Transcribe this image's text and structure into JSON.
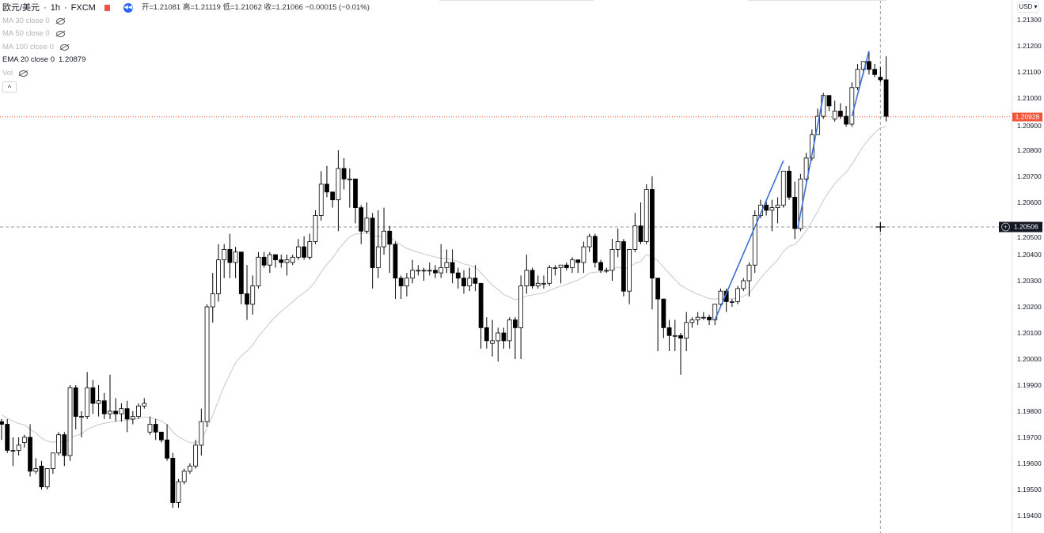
{
  "header": {
    "symbol": "欧元/美元",
    "interval": "1h",
    "exchange": "FXCM",
    "separator": "·",
    "ohlc": "开=1.21081 高=1.21119 低=1.21062 收=1.21066 −0.00015 (−0.01%)",
    "rewind_icon": "rewind-icon",
    "flag_icon": "flag-icon",
    "flag_color": "#f0524a"
  },
  "indicators": [
    {
      "label": "MA 30 close 0",
      "hidden": true
    },
    {
      "label": "MA 50 close 0",
      "hidden": true
    },
    {
      "label": "MA 100 close 0",
      "hidden": true
    },
    {
      "label": "EMA 20 close 0",
      "value": "1.20879",
      "hidden": false
    },
    {
      "label": "Vol",
      "hidden": true
    }
  ],
  "collapse_label": "^",
  "currency_button": "USD ▾",
  "last_price_label": "1.20928",
  "crosshair_price_label": "1.20506",
  "colors": {
    "up": "#ffffff",
    "down": "#000000",
    "ema": "#c8c8c8",
    "last_price": "#f0553a",
    "drawing": "#3d6fd6",
    "crosshair": "#9598a1"
  },
  "chart_data": {
    "type": "candlestick",
    "ylim": [
      1.1935,
      1.2137
    ],
    "y_ticks": [
      "1.21300",
      "1.21200",
      "1.21100",
      "1.21000",
      "1.20900",
      "1.20800",
      "1.20700",
      "1.20600",
      "1.20500",
      "1.20400",
      "1.20300",
      "1.20200",
      "1.20100",
      "1.20000",
      "1.19900",
      "1.19800",
      "1.19700",
      "1.19600",
      "1.19500",
      "1.19400"
    ],
    "grid": false,
    "last_price": 1.20928,
    "crosshair": {
      "price": 1.20506,
      "candle_index": 154
    },
    "ema_period": 20,
    "drawings": [
      {
        "from": [
          125,
          1.2015
        ],
        "to": [
          137,
          1.2076
        ]
      },
      {
        "from": [
          139.5,
          1.205
        ],
        "to": [
          144,
          1.2101
        ]
      },
      {
        "from": [
          149,
          1.2093
        ],
        "to": [
          152,
          1.2118
        ]
      }
    ],
    "ohlc": [
      [
        1.1976,
        1.1977,
        1.1969,
        1.1975
      ],
      [
        1.1975,
        1.1977,
        1.1964,
        1.1965
      ],
      [
        1.1965,
        1.197,
        1.1959,
        1.1965
      ],
      [
        1.1965,
        1.197,
        1.1963,
        1.1967
      ],
      [
        1.1968,
        1.1971,
        1.1966,
        1.197
      ],
      [
        1.197,
        1.1975,
        1.1955,
        1.1957
      ],
      [
        1.1957,
        1.1962,
        1.1956,
        1.1958
      ],
      [
        1.1959,
        1.1961,
        1.195,
        1.1951
      ],
      [
        1.1951,
        1.1958,
        1.195,
        1.1958
      ],
      [
        1.1958,
        1.1964,
        1.1956,
        1.1964
      ],
      [
        1.1964,
        1.1972,
        1.1963,
        1.1971
      ],
      [
        1.1971,
        1.1972,
        1.1959,
        1.1963
      ],
      [
        1.1963,
        1.199,
        1.1961,
        1.1989
      ],
      [
        1.1989,
        1.199,
        1.1973,
        1.1978
      ],
      [
        1.1978,
        1.198,
        1.197,
        1.1978
      ],
      [
        1.1978,
        1.1995,
        1.1977,
        1.1989
      ],
      [
        1.1989,
        1.1992,
        1.1979,
        1.1983
      ],
      [
        1.1983,
        1.199,
        1.1978,
        1.1984
      ],
      [
        1.1984,
        1.1987,
        1.1977,
        1.1979
      ],
      [
        1.1979,
        1.1994,
        1.1977,
        1.198
      ],
      [
        1.198,
        1.1985,
        1.1976,
        1.1979
      ],
      [
        1.1979,
        1.1983,
        1.1976,
        1.1981
      ],
      [
        1.1981,
        1.1984,
        1.1972,
        1.1977
      ],
      [
        1.1977,
        1.198,
        1.1975,
        1.1978
      ],
      [
        1.1978,
        1.1983,
        1.1977,
        1.1982
      ],
      [
        1.1982,
        1.1985,
        1.1981,
        1.1983
      ],
      [
        1.1972,
        1.1978,
        1.1971,
        1.1975
      ],
      [
        1.1975,
        1.1977,
        1.1969,
        1.1972
      ],
      [
        1.1972,
        1.1972,
        1.1968,
        1.1969
      ],
      [
        1.1969,
        1.1975,
        1.1961,
        1.1962
      ],
      [
        1.1962,
        1.1964,
        1.1943,
        1.1945
      ],
      [
        1.1945,
        1.1954,
        1.1943,
        1.1953
      ],
      [
        1.1953,
        1.1958,
        1.1952,
        1.1957
      ],
      [
        1.1957,
        1.196,
        1.1956,
        1.1959
      ],
      [
        1.1959,
        1.1969,
        1.1958,
        1.1967
      ],
      [
        1.1967,
        1.1981,
        1.1963,
        1.1976
      ],
      [
        1.1976,
        1.2021,
        1.1974,
        1.202
      ],
      [
        1.202,
        1.2033,
        1.2014,
        1.2025
      ],
      [
        1.2025,
        1.2044,
        1.2022,
        1.2038
      ],
      [
        1.2038,
        1.2044,
        1.2031,
        1.2042
      ],
      [
        1.2042,
        1.2048,
        1.2031,
        1.2037
      ],
      [
        1.2037,
        1.2043,
        1.2031,
        1.2041
      ],
      [
        1.2041,
        1.2041,
        1.2021,
        1.2025
      ],
      [
        1.2025,
        1.2036,
        1.2015,
        1.2021
      ],
      [
        1.2021,
        1.2032,
        1.2017,
        1.2028
      ],
      [
        1.2028,
        1.2041,
        1.2027,
        1.2039
      ],
      [
        1.2039,
        1.2041,
        1.2035,
        1.2036
      ],
      [
        1.2036,
        1.2041,
        1.2033,
        1.204
      ],
      [
        1.204,
        1.204,
        1.2035,
        1.2038
      ],
      [
        1.2038,
        1.204,
        1.2035,
        1.2037
      ],
      [
        1.2037,
        1.204,
        1.2032,
        1.2038
      ],
      [
        1.2037,
        1.204,
        1.2036,
        1.2039
      ],
      [
        1.2039,
        1.2046,
        1.2038,
        1.2043
      ],
      [
        1.2043,
        1.2047,
        1.2038,
        1.2039
      ],
      [
        1.2039,
        1.2048,
        1.2038,
        1.2045
      ],
      [
        1.2045,
        1.2057,
        1.2044,
        1.2055
      ],
      [
        1.2055,
        1.2072,
        1.2053,
        1.2067
      ],
      [
        1.2067,
        1.2074,
        1.2062,
        1.2064
      ],
      [
        1.2064,
        1.2064,
        1.2058,
        1.2061
      ],
      [
        1.2061,
        1.208,
        1.2049,
        1.2073
      ],
      [
        1.2073,
        1.2077,
        1.2065,
        1.2069
      ],
      [
        1.2069,
        1.2073,
        1.2058,
        1.2069
      ],
      [
        1.2069,
        1.2069,
        1.2052,
        1.2058
      ],
      [
        1.2058,
        1.2059,
        1.2044,
        1.2049
      ],
      [
        1.2049,
        1.206,
        1.2048,
        1.2054
      ],
      [
        1.2054,
        1.2056,
        1.2027,
        1.2035
      ],
      [
        1.2035,
        1.2057,
        1.2031,
        1.2043
      ],
      [
        1.2043,
        1.2058,
        1.204,
        1.2049
      ],
      [
        1.2049,
        1.2051,
        1.2033,
        1.2044
      ],
      [
        1.2044,
        1.2045,
        1.2023,
        1.2031
      ],
      [
        1.2031,
        1.2032,
        1.2023,
        1.2028
      ],
      [
        1.2028,
        1.2033,
        1.2024,
        1.2031
      ],
      [
        1.2031,
        1.2038,
        1.2029,
        1.2034
      ],
      [
        1.2034,
        1.2036,
        1.2032,
        1.2034
      ],
      [
        1.2034,
        1.2035,
        1.203,
        1.2034
      ],
      [
        1.2034,
        1.2037,
        1.2032,
        1.2034
      ],
      [
        1.2034,
        1.2036,
        1.2031,
        1.2033
      ],
      [
        1.2033,
        1.2044,
        1.2031,
        1.2035
      ],
      [
        1.2035,
        1.2042,
        1.2033,
        1.2037
      ],
      [
        1.2037,
        1.2042,
        1.2029,
        1.2033
      ],
      [
        1.2033,
        1.2035,
        1.2027,
        1.2031
      ],
      [
        1.2031,
        1.2034,
        1.2025,
        1.2028
      ],
      [
        1.2028,
        1.2035,
        1.2026,
        1.2031
      ],
      [
        1.2031,
        1.2036,
        1.2026,
        1.2029
      ],
      [
        1.2029,
        1.2029,
        1.2004,
        1.2012
      ],
      [
        1.2012,
        1.2016,
        1.2004,
        1.2007
      ],
      [
        1.2006,
        1.2015,
        1.2001,
        1.2007
      ],
      [
        1.2007,
        1.2012,
        1.1999,
        1.201
      ],
      [
        1.201,
        1.2012,
        1.2004,
        1.2007
      ],
      [
        1.2007,
        1.2016,
        1.2004,
        1.2015
      ],
      [
        1.2015,
        1.2016,
        1.2,
        1.2012
      ],
      [
        1.2012,
        1.2032,
        1.2,
        1.2028
      ],
      [
        1.2028,
        1.204,
        1.2025,
        1.2034
      ],
      [
        1.2034,
        1.2035,
        1.2027,
        1.2028
      ],
      [
        1.2028,
        1.2032,
        1.2027,
        1.2029
      ],
      [
        1.2029,
        1.2032,
        1.2027,
        1.2029
      ],
      [
        1.2029,
        1.2036,
        1.2028,
        1.2035
      ],
      [
        1.2035,
        1.2036,
        1.2032,
        1.2035
      ],
      [
        1.2035,
        1.2036,
        1.2029,
        1.2036
      ],
      [
        1.2036,
        1.2037,
        1.2034,
        1.2035
      ],
      [
        1.2035,
        1.2039,
        1.2033,
        1.2038
      ],
      [
        1.2038,
        1.2038,
        1.2033,
        1.2037
      ],
      [
        1.2037,
        1.2045,
        1.2033,
        1.2043
      ],
      [
        1.2043,
        1.2048,
        1.2041,
        1.2047
      ],
      [
        1.2047,
        1.2048,
        1.2035,
        1.2037
      ],
      [
        1.2037,
        1.2038,
        1.2033,
        1.2034
      ],
      [
        1.2034,
        1.2035,
        1.2033,
        1.2034
      ],
      [
        1.2034,
        1.2046,
        1.203,
        1.2042
      ],
      [
        1.2042,
        1.205,
        1.2039,
        1.2045
      ],
      [
        1.2045,
        1.2046,
        1.2024,
        1.2026
      ],
      [
        1.2026,
        1.2042,
        1.2021,
        1.2042
      ],
      [
        1.2042,
        1.2056,
        1.2041,
        1.2051
      ],
      [
        1.2051,
        1.206,
        1.2044,
        1.2045
      ],
      [
        1.2045,
        1.2067,
        1.2044,
        1.2065
      ],
      [
        1.2065,
        1.207,
        1.2019,
        1.2031
      ],
      [
        1.2031,
        1.2031,
        1.2003,
        1.2023
      ],
      [
        1.2023,
        1.2023,
        1.2008,
        1.2012
      ],
      [
        1.2012,
        1.2015,
        1.2003,
        1.2009
      ],
      [
        1.2009,
        1.2015,
        1.2003,
        1.2009
      ],
      [
        1.2009,
        1.201,
        1.1994,
        1.2008
      ],
      [
        1.2008,
        1.2018,
        1.2003,
        1.2014
      ],
      [
        1.2014,
        1.2016,
        1.2012,
        1.2015
      ],
      [
        1.2015,
        1.2018,
        1.2013,
        1.2016
      ],
      [
        1.2016,
        1.2018,
        1.2015,
        1.2016
      ],
      [
        1.2016,
        1.2017,
        1.2013,
        1.2015
      ],
      [
        1.2015,
        1.2021,
        1.2013,
        1.2021
      ],
      [
        1.2021,
        1.2027,
        1.202,
        1.2026
      ],
      [
        1.2026,
        1.2027,
        1.2018,
        1.2022
      ],
      [
        1.2022,
        1.2023,
        1.202,
        1.2022
      ],
      [
        1.2022,
        1.2028,
        1.2021,
        1.2027
      ],
      [
        1.2027,
        1.2031,
        1.2026,
        1.203
      ],
      [
        1.203,
        1.2037,
        1.2024,
        1.2036
      ],
      [
        1.2036,
        1.2057,
        1.2033,
        1.2055
      ],
      [
        1.2055,
        1.2061,
        1.2054,
        1.2059
      ],
      [
        1.2059,
        1.2061,
        1.2055,
        1.2057
      ],
      [
        1.2057,
        1.2061,
        1.2049,
        1.2058
      ],
      [
        1.2058,
        1.2062,
        1.2052,
        1.2059
      ],
      [
        1.2059,
        1.2072,
        1.2058,
        1.2072
      ],
      [
        1.2072,
        1.2074,
        1.2061,
        1.2062
      ],
      [
        1.2062,
        1.2068,
        1.2046,
        1.205
      ],
      [
        1.205,
        1.2071,
        1.2049,
        1.2069
      ],
      [
        1.2069,
        1.2079,
        1.2068,
        1.2077
      ],
      [
        1.2077,
        1.2088,
        1.2076,
        1.2086
      ],
      [
        1.2086,
        1.2096,
        1.2086,
        1.2093
      ],
      [
        1.2093,
        1.2102,
        1.2092,
        1.2101
      ],
      [
        1.2101,
        1.2101,
        1.2095,
        1.2097
      ],
      [
        1.2092,
        1.2099,
        1.2091,
        1.2095
      ],
      [
        1.2095,
        1.2098,
        1.2092,
        1.2093
      ],
      [
        1.2093,
        1.2097,
        1.2089,
        1.209
      ],
      [
        1.209,
        1.2106,
        1.2089,
        1.2104
      ],
      [
        1.2104,
        1.2113,
        1.2103,
        1.2111
      ],
      [
        1.2111,
        1.2114,
        1.2109,
        1.2114
      ],
      [
        1.2114,
        1.2118,
        1.2109,
        1.2111
      ],
      [
        1.2111,
        1.2113,
        1.2108,
        1.2109
      ],
      [
        1.2108,
        1.2112,
        1.2106,
        1.2107
      ],
      [
        1.2107,
        1.2116,
        1.2091,
        1.2093
      ]
    ]
  }
}
